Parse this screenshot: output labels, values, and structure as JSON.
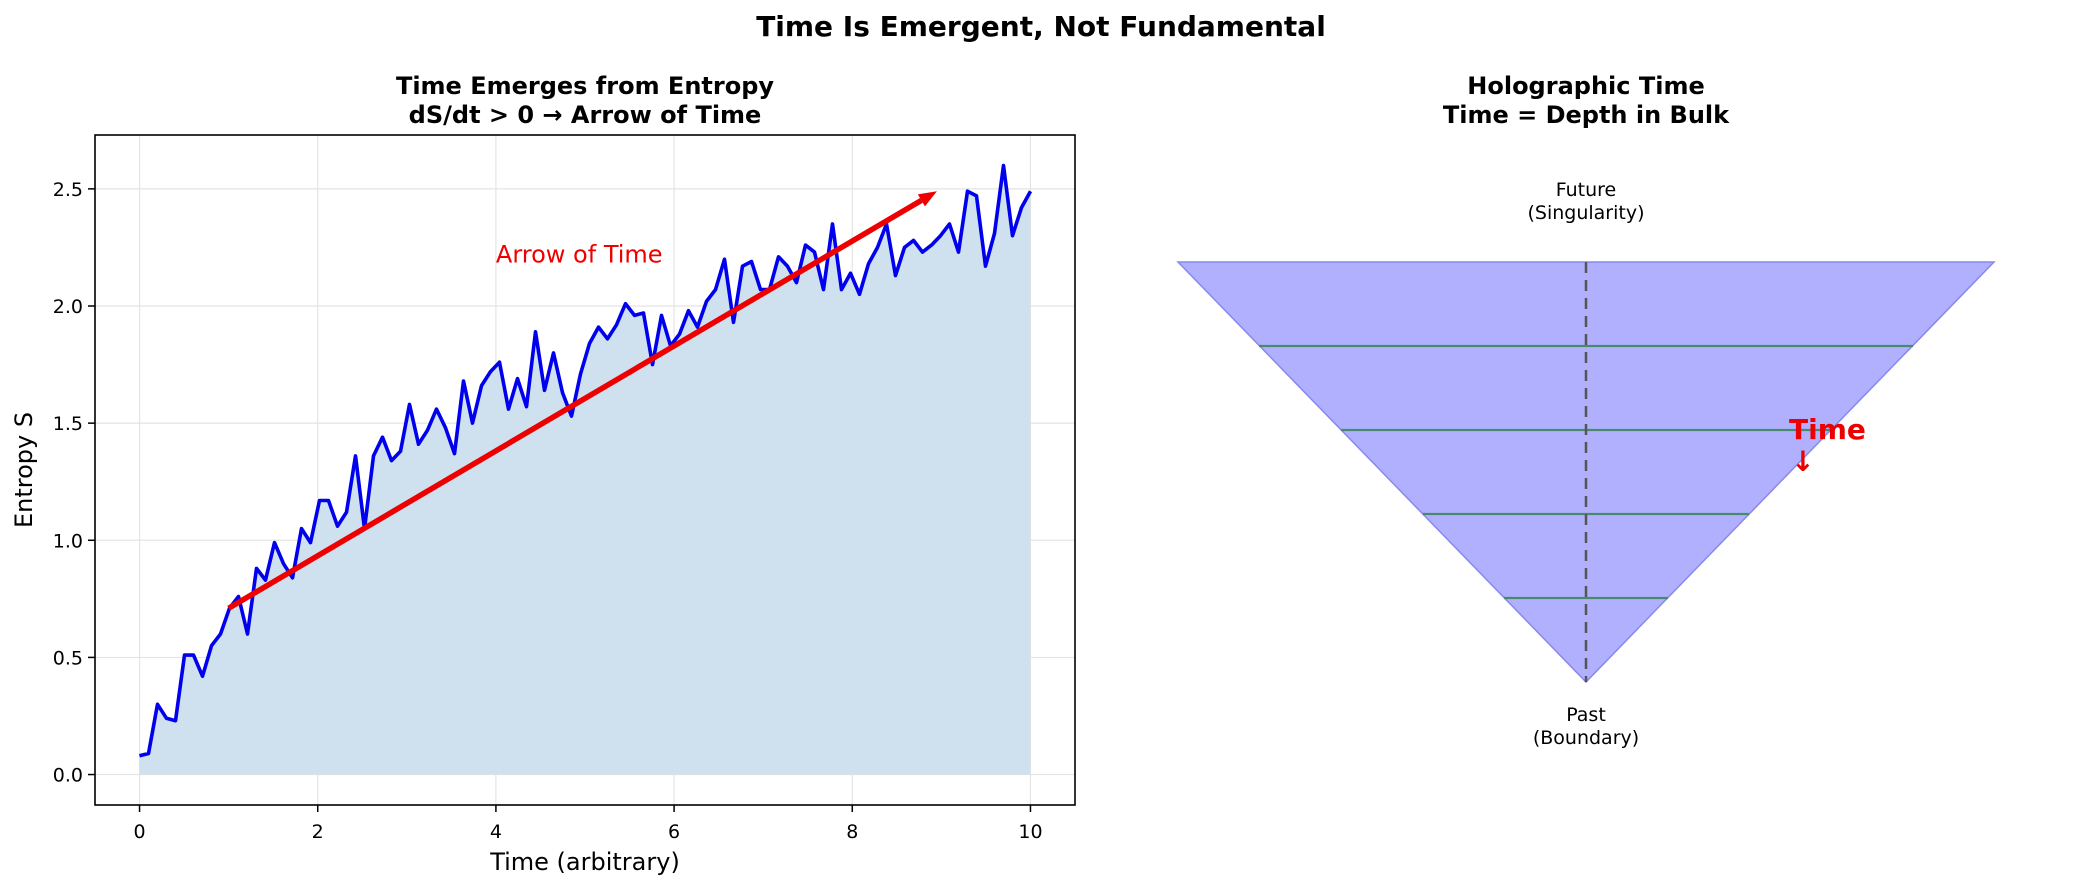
{
  "figure": {
    "suptitle": "Time Is Emergent, Not Fundamental"
  },
  "left_panel": {
    "title_line1": "Time Emerges from Entropy",
    "title_line2": "dS/dt > 0 → Arrow of Time",
    "xlabel": "Time (arbitrary)",
    "ylabel": "Entropy S",
    "annotation": "Arrow of Time"
  },
  "right_panel": {
    "title_line1": "Holographic Time",
    "title_line2": "Time = Depth in Bulk",
    "top_label_line1": "Future",
    "top_label_line2": "(Singularity)",
    "bottom_label_line1": "Past",
    "bottom_label_line2": "(Boundary)",
    "time_label": "Time",
    "time_arrow": "↓"
  },
  "colors": {
    "entropy_line": "#0000ee",
    "entropy_fill": "#cfe0ee",
    "arrow": "#ee0000",
    "annotation": "#ee0000",
    "cone_fill": "#b0b0ff",
    "cone_edge": "#8888ee",
    "slice": "#4a8a6a",
    "axis_center": "#555555",
    "grid": "#e4e4e4"
  },
  "chart_data": [
    {
      "type": "line",
      "title": "Time Emerges from Entropy\ndS/dt > 0 → Arrow of Time",
      "xlabel": "Time (arbitrary)",
      "ylabel": "Entropy S",
      "xlim": [
        -0.5,
        10.5
      ],
      "ylim": [
        -0.13,
        2.73
      ],
      "xticks": [
        0,
        2,
        4,
        6,
        8,
        10
      ],
      "yticks": [
        0.0,
        0.5,
        1.0,
        1.5,
        2.0,
        2.5
      ],
      "ytick_labels": [
        "0.0",
        "0.5",
        "1.0",
        "1.5",
        "2.0",
        "2.5"
      ],
      "grid": true,
      "fill_under": true,
      "series": [
        {
          "x_start": 0,
          "x_end": 10,
          "values": [
            0.08,
            0.09,
            0.3,
            0.24,
            0.23,
            0.51,
            0.51,
            0.42,
            0.55,
            0.6,
            0.71,
            0.76,
            0.6,
            0.88,
            0.83,
            0.99,
            0.9,
            0.84,
            1.05,
            0.99,
            1.17,
            1.17,
            1.06,
            1.12,
            1.36,
            1.05,
            1.36,
            1.44,
            1.34,
            1.38,
            1.58,
            1.41,
            1.47,
            1.56,
            1.48,
            1.37,
            1.68,
            1.5,
            1.66,
            1.72,
            1.76,
            1.56,
            1.69,
            1.57,
            1.89,
            1.64,
            1.8,
            1.63,
            1.53,
            1.71,
            1.84,
            1.91,
            1.86,
            1.92,
            2.01,
            1.96,
            1.97,
            1.75,
            1.96,
            1.83,
            1.88,
            1.98,
            1.91,
            2.02,
            2.07,
            2.2,
            1.93,
            2.17,
            2.19,
            2.07,
            2.07,
            2.21,
            2.17,
            2.1,
            2.26,
            2.23,
            2.07,
            2.35,
            2.07,
            2.14,
            2.05,
            2.18,
            2.25,
            2.35,
            2.13,
            2.25,
            2.28,
            2.23,
            2.26,
            2.3,
            2.35,
            2.23,
            2.49,
            2.47,
            2.17,
            2.31,
            2.6,
            2.3,
            2.42,
            2.49
          ]
        }
      ],
      "annotations": [
        {
          "text": "Arrow of Time",
          "text_at": [
            4.0,
            2.22
          ],
          "arrow_from": [
            1.0,
            0.71
          ],
          "arrow_to": [
            8.95,
            2.49
          ]
        }
      ]
    },
    {
      "type": "diagram",
      "title": "Holographic Time\nTime = Depth in Bulk",
      "shape": "inverted triangle cone",
      "top_label": "Future\n(Singularity)",
      "bottom_label": "Past\n(Boundary)",
      "horizontal_slices": 4,
      "center_axis": "dashed",
      "side_label": "Time ↓"
    }
  ]
}
